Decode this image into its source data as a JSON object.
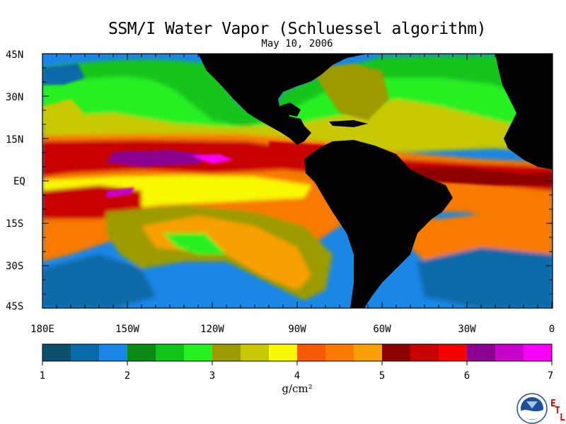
{
  "title": "SSM/I Water Vapor (Schluessel algorithm)",
  "date": "May 10, 2006",
  "lat_labels": [
    "45N",
    "30N",
    "15N",
    "EQ",
    "15S",
    "30S",
    "45S"
  ],
  "lon_labels": [
    "180E",
    "150W",
    "120W",
    "90W",
    "60W",
    "30W",
    "0"
  ],
  "colorbar": {
    "colors": [
      "#0b4f6c",
      "#0a6aa8",
      "#1a86e6",
      "#0a8a12",
      "#12c41a",
      "#28f020",
      "#9b9b00",
      "#c8c800",
      "#f8f800",
      "#f85a00",
      "#f87a00",
      "#f8a000",
      "#8c0000",
      "#c80000",
      "#f80000",
      "#8c0090",
      "#c800c8",
      "#f800f8"
    ],
    "tick_labels": [
      "1",
      "2",
      "3",
      "4",
      "5",
      "6",
      "7"
    ],
    "units": "g/cm²"
  },
  "logo": {
    "text": "NOAA",
    "etl": [
      "E",
      "T",
      "L"
    ]
  }
}
